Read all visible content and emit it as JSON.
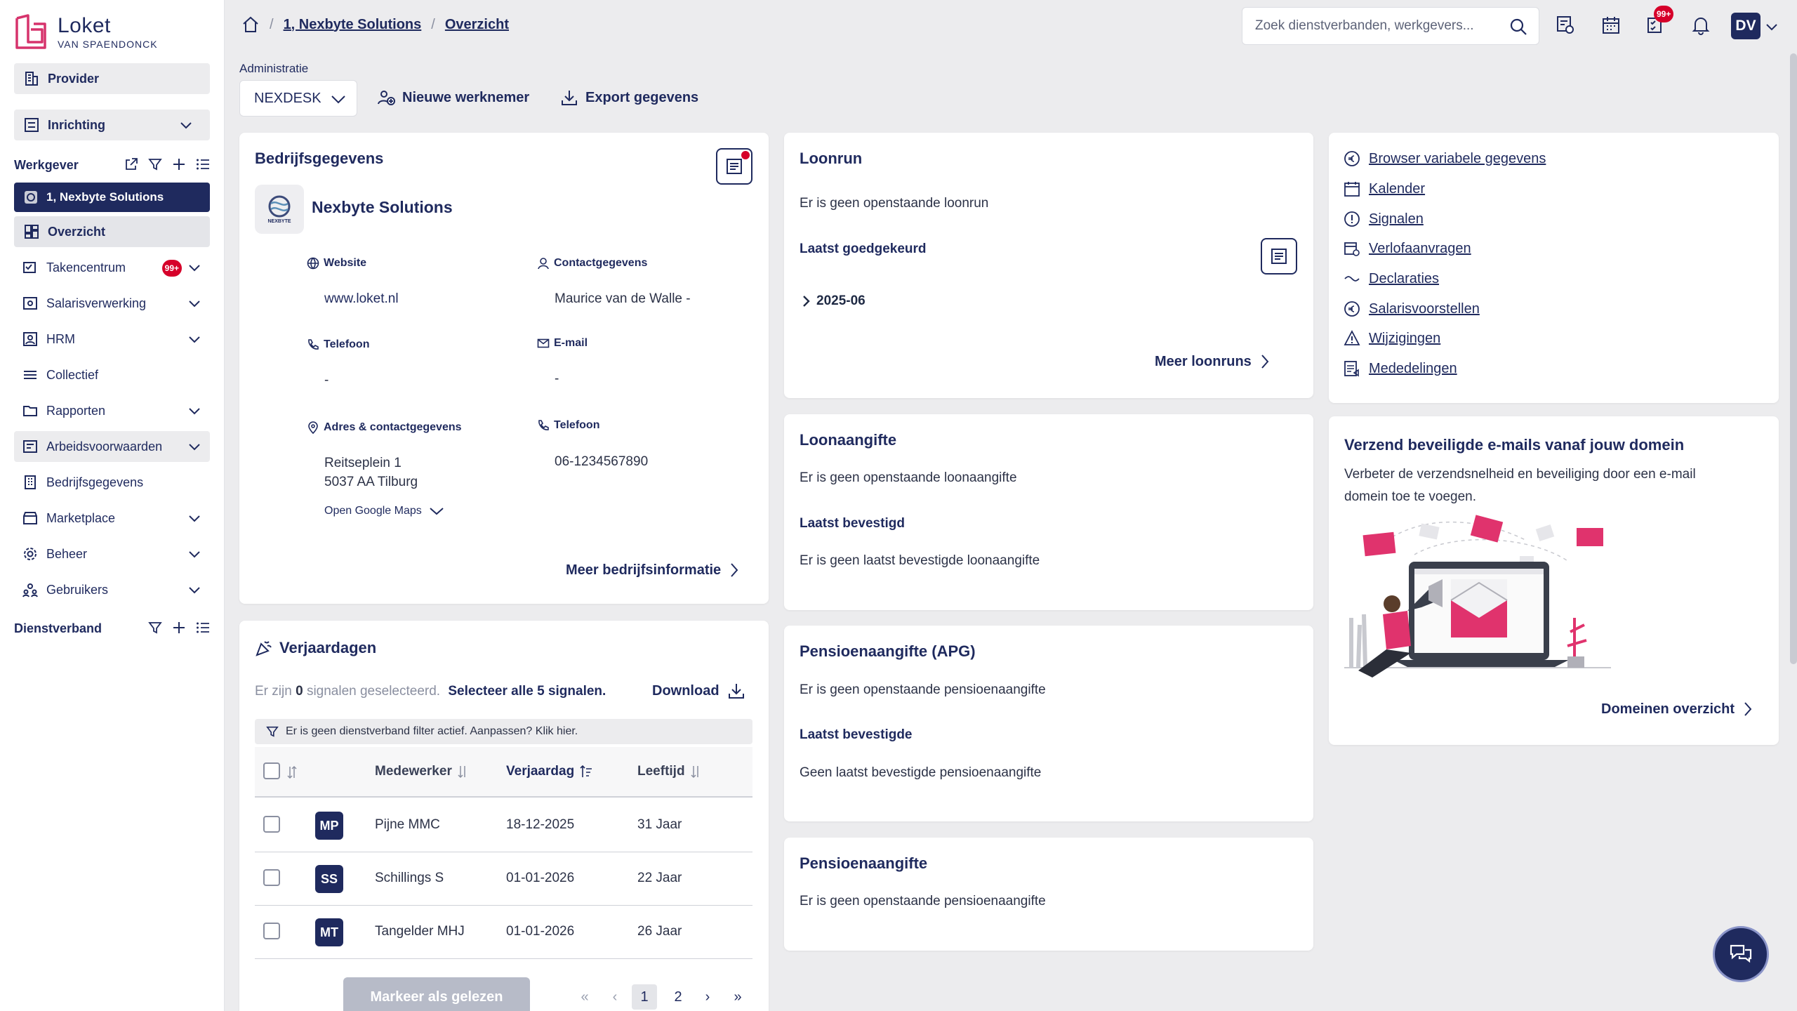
{
  "brand": {
    "name": "Loket",
    "sub": "VAN SPAENDONCK"
  },
  "sidebar": {
    "provider": "Provider",
    "inrichting": "Inrichting",
    "werkgever": "Werkgever",
    "active_employer": "1, Nexbyte Solutions",
    "overzicht": "Overzicht",
    "items": [
      {
        "label": "Takencentrum",
        "badge": "99+"
      },
      {
        "label": "Salarisverwerking"
      },
      {
        "label": "HRM"
      },
      {
        "label": "Collectief"
      },
      {
        "label": "Rapporten"
      },
      {
        "label": "Arbeidsvoorwaarden"
      },
      {
        "label": "Bedrijfsgegevens"
      },
      {
        "label": "Marketplace"
      },
      {
        "label": "Beheer"
      },
      {
        "label": "Gebruikers"
      }
    ],
    "dienstverband": "Dienstverband"
  },
  "topbar": {
    "breadcrumb": [
      "1, Nexbyte Solutions",
      "Overzicht"
    ],
    "search_placeholder": "Zoek dienstverbanden, werkgevers...",
    "notif_badge": "99+",
    "avatar": "DV"
  },
  "admin": {
    "label": "Administratie",
    "selected": "NEXDESK",
    "new_employee": "Nieuwe werknemer",
    "export": "Export gegevens"
  },
  "company": {
    "title": "Bedrijfsgegevens",
    "name": "Nexbyte Solutions",
    "logo_text": "NEXBYTE",
    "website_label": "Website",
    "website": "www.loket.nl",
    "contact_label": "Contactgegevens",
    "contact": "Maurice van de Walle -",
    "phone_label": "Telefoon",
    "phone": "-",
    "email_label": "E-mail",
    "email": "-",
    "address_label": "Adres & contactgegevens",
    "address_line1": "Reitseplein 1",
    "address_line2": "5037 AA Tilburg",
    "maps": "Open Google Maps",
    "phone2_label": "Telefoon",
    "phone2": "06-1234567890",
    "more": "Meer bedrijfsinformatie"
  },
  "birthdays": {
    "title": "Verjaardagen",
    "selected_prefix": "Er zijn",
    "selected_count": "0",
    "selected_suffix": "signalen geselecteerd.",
    "select_all": "Selecteer alle 5 signalen.",
    "download": "Download",
    "filter_msg": "Er is geen dienstverband filter actief. Aanpassen? Klik hier.",
    "columns": [
      "Medewerker",
      "Verjaardag",
      "Leeftijd"
    ],
    "rows": [
      {
        "initials": "MP",
        "name": "Pijne MMC",
        "date": "18-12-2025",
        "age": "31 Jaar"
      },
      {
        "initials": "SS",
        "name": "Schillings S",
        "date": "01-01-2026",
        "age": "22 Jaar"
      },
      {
        "initials": "MT",
        "name": "Tangelder MHJ",
        "date": "01-01-2026",
        "age": "26 Jaar"
      }
    ],
    "mark_read": "Markeer als gelezen",
    "pages": [
      "1",
      "2"
    ]
  },
  "loonrun": {
    "title": "Loonrun",
    "empty": "Er is geen openstaande loonrun",
    "approved_label": "Laatst goedgekeurd",
    "period": "2025-06",
    "more": "Meer loonruns"
  },
  "loonaangifte": {
    "title": "Loonaangifte",
    "empty": "Er is geen openstaande loonaangifte",
    "confirmed_label": "Laatst bevestigd",
    "confirmed_empty": "Er is geen laatst bevestigde loonaangifte"
  },
  "pensioen_apg": {
    "title": "Pensioenaangifte (APG)",
    "empty": "Er is geen openstaande pensioenaangifte",
    "confirmed_label": "Laatst bevestigde",
    "confirmed_empty": "Geen laatst bevestigde pensioenaangifte"
  },
  "pensioen": {
    "title": "Pensioenaangifte",
    "empty": "Er is geen openstaande pensioenaangifte"
  },
  "quicklinks": [
    {
      "label": "Browser variabele gegevens",
      "icon": "euro-icon"
    },
    {
      "label": "Kalender",
      "icon": "calendar-icon"
    },
    {
      "label": "Signalen",
      "icon": "alert-circle-icon"
    },
    {
      "label": "Verlofaanvragen",
      "icon": "leave-icon"
    },
    {
      "label": "Declaraties",
      "icon": "wave-icon"
    },
    {
      "label": "Salarisvoorstellen",
      "icon": "euro-icon"
    },
    {
      "label": "Wijzigingen",
      "icon": "warning-icon"
    },
    {
      "label": "Mededelingen",
      "icon": "announcement-icon"
    }
  ],
  "email_promo": {
    "title": "Verzend beveiligde e-mails vanaf jouw domein",
    "text1": "Verbeter de verzendsnelheid en beveiliging door een e-mail",
    "text2": "domein toe te voegen.",
    "more": "Domeinen overzicht"
  },
  "colors": {
    "navy": "#1f2a5e",
    "accent": "#d6336c",
    "badge": "#d6002a"
  }
}
